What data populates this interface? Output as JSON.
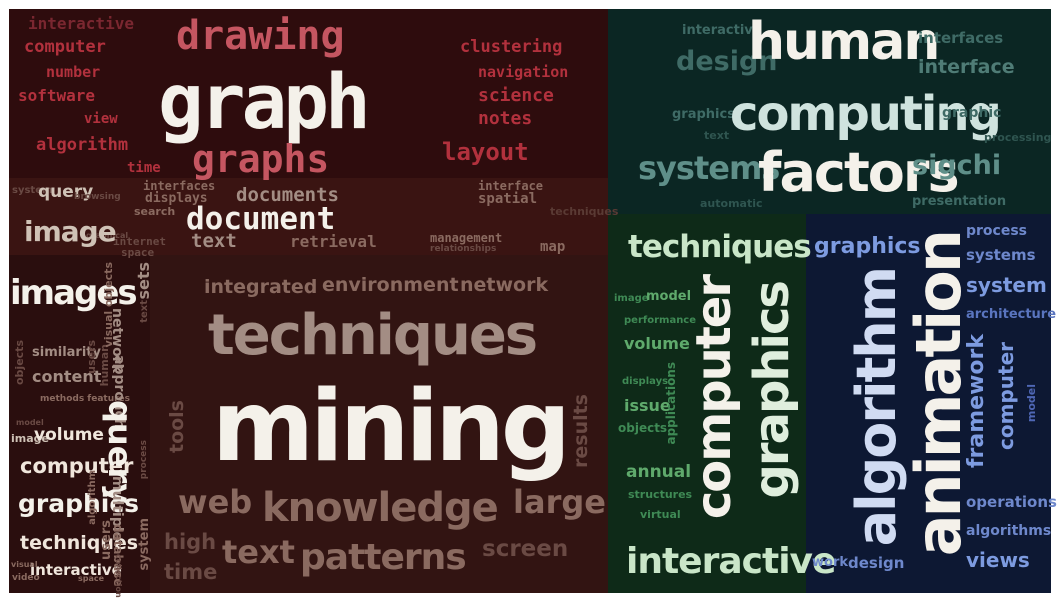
{
  "colors": {
    "maroon": "#2e0c0d",
    "maroon_light": "#3a1412",
    "brown": "#321412",
    "dark_teal": "#0b2623",
    "dark_green": "#0e2a18",
    "navy": "#0d1833",
    "pink": "#c55661",
    "red": "#b2313d",
    "red_dark": "#7a2730",
    "white": "#f4f1ea",
    "tan": "#a38d84",
    "teal_text": "#9cc4bd",
    "teal_dim": "#3f6b66",
    "green_text": "#8fcf9a",
    "green_dim": "#3f8a55",
    "blue_text": "#8aa6e2",
    "blue_dim": "#4f67b5"
  },
  "cloud": {
    "top_left": {
      "interactive": "interactive",
      "computer": "computer",
      "number": "number",
      "software": "software",
      "view": "view",
      "algorithm": "algorithm",
      "time": "time",
      "drawing": "drawing",
      "graph": "graph",
      "graphs": "graphs",
      "clustering": "clustering",
      "navigation": "navigation",
      "science": "science",
      "notes": "notes",
      "layout": "layout"
    },
    "document_band": {
      "system": "system",
      "query": "query",
      "browsing": "browsing",
      "interfaces": "interfaces",
      "displays": "displays",
      "documents": "documents",
      "interface": "interface",
      "spatial": "spatial",
      "document": "document",
      "search": "search",
      "internet": "internet",
      "space": "space",
      "text": "text",
      "retrieval": "retrieval",
      "management": "management",
      "relationships": "relationships",
      "map": "map",
      "graphical": "graphical",
      "techniques": "techniques"
    },
    "left_column": {
      "image": "image",
      "images": "images",
      "similarity": "similarity",
      "content": "content",
      "objects": "objects",
      "methods_features": "methods features",
      "video": "video",
      "model": "model",
      "image_small": "image",
      "volume": "volume",
      "computer": "computer",
      "graphics": "graphics",
      "techniques": "techniques",
      "interactive": "interactive",
      "visual": "visual",
      "space": "space",
      "users": "users",
      "human": "human"
    },
    "middle_column": {
      "visual_objects": "visual objects",
      "sets": "sets",
      "network": "network",
      "approach": "approach",
      "query": "query",
      "multiple": "multiple",
      "database": "database",
      "users": "users",
      "system": "system",
      "text": "text",
      "process": "process",
      "algorithm": "algorithm",
      "collection": "collection"
    },
    "mining": {
      "integrated": "integrated",
      "environment": "environment",
      "network": "network",
      "techniques": "techniques",
      "mining": "mining",
      "tools": "tools",
      "results": "results",
      "web": "web",
      "knowledge": "knowledge",
      "large": "large",
      "high": "high",
      "time": "time",
      "text": "text",
      "patterns": "patterns",
      "screen": "screen"
    },
    "human": {
      "interactive": "interactive",
      "design": "design",
      "human": "human",
      "interfaces": "interfaces",
      "interface": "interface",
      "graphics": "graphics",
      "text": "text",
      "computing": "computing",
      "graphic": "graphic",
      "processing": "processing",
      "systems": "systems",
      "factors": "factors",
      "sigchi": "sigchi",
      "automatic": "automatic",
      "presentation": "presentation"
    },
    "graphics_green": {
      "techniques": "techniques",
      "image": "image",
      "model": "model",
      "performance": "performance",
      "volume": "volume",
      "displays": "displays",
      "issue": "issue",
      "objects": "objects",
      "applications": "applications",
      "annual": "annual",
      "structures": "structures",
      "virtual": "virtual",
      "computer": "computer",
      "graphics": "graphics",
      "interactive": "interactive"
    },
    "animation": {
      "graphics": "graphics",
      "algorithm": "algorithm",
      "animation": "animation",
      "process": "process",
      "systems": "systems",
      "system": "system",
      "architecture": "architecture",
      "framework": "framework",
      "computer": "computer",
      "model": "model",
      "operations": "operations",
      "algorithms": "algorithms",
      "views": "views",
      "work": "work",
      "design": "design"
    }
  }
}
